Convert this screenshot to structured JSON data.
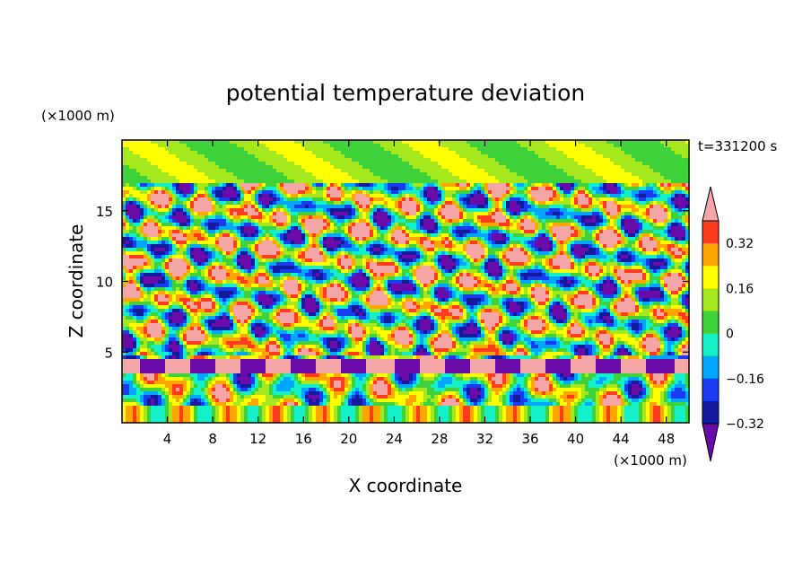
{
  "chart_data": {
    "type": "heatmap",
    "title": "potential temperature deviation",
    "xlabel": "X coordinate",
    "ylabel": "Z coordinate",
    "x_unit_label": "(×1000 m)",
    "y_unit_label": "(×1000 m)",
    "time_label": "t=331200 s",
    "xlim": [
      0,
      50
    ],
    "ylim": [
      0,
      20
    ],
    "x_ticks": [
      4,
      8,
      12,
      16,
      20,
      24,
      28,
      32,
      36,
      40,
      44,
      48
    ],
    "y_ticks": [
      5,
      10,
      15
    ],
    "colorbar": {
      "levels": [
        -0.4,
        -0.32,
        -0.24,
        -0.16,
        -0.08,
        0,
        0.08,
        0.16,
        0.24,
        0.32,
        0.4
      ],
      "tick_values": [
        -0.32,
        -0.16,
        0,
        0.16,
        0.32
      ],
      "tick_labels": [
        "−0.32",
        "−0.16",
        "0",
        "0.16",
        "0.32"
      ],
      "colors": [
        "#6a0aa8",
        "#141a9c",
        "#1a3cf0",
        "#00a6ff",
        "#14f0c8",
        "#3fd23a",
        "#a6e81e",
        "#ffff00",
        "#ffa500",
        "#ff3b1e",
        "#f4a6a6"
      ],
      "extend": "both"
    }
  }
}
